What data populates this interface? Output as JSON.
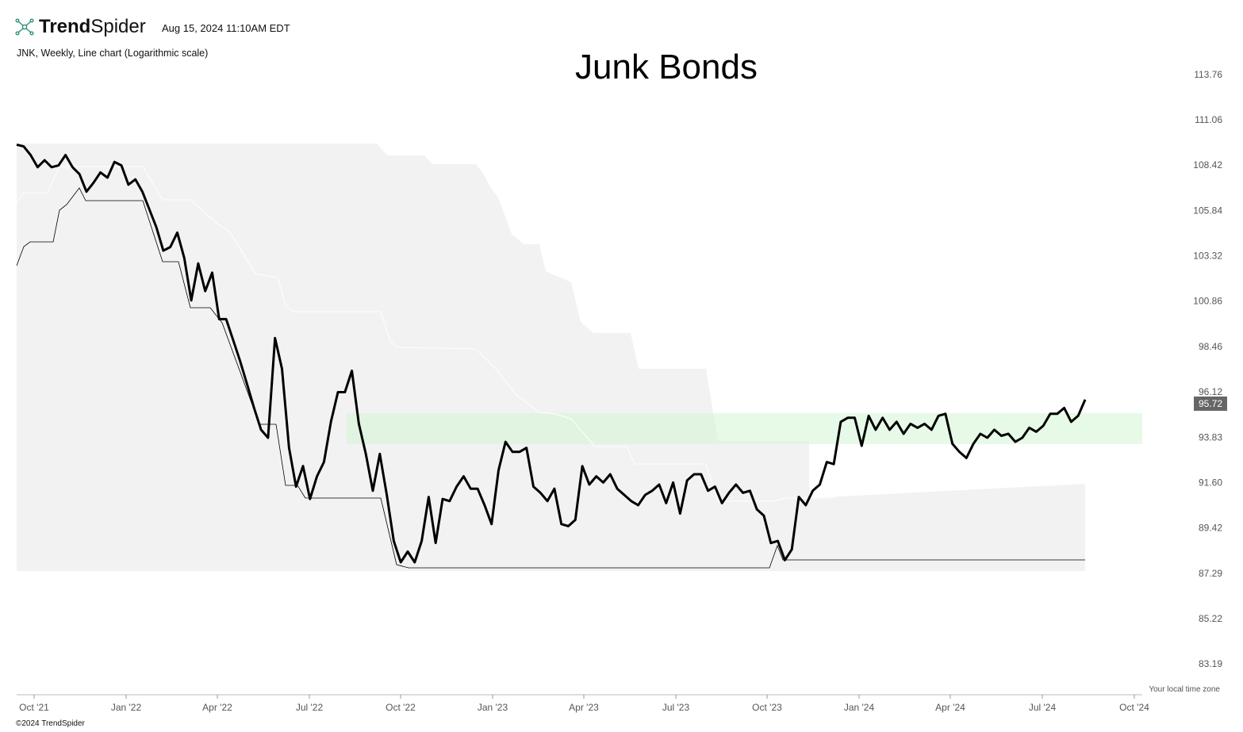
{
  "header": {
    "brand_bold": "Trend",
    "brand_light": "Spider",
    "timestamp": "Aug 15, 2024 11:10AM EDT",
    "subtitle": "JNK, Weekly, Line chart (Logarithmic scale)"
  },
  "footer": {
    "copyright": "©2024 TrendSpider",
    "timezone_note": "Your local time zone"
  },
  "colors": {
    "price_line": "#000000",
    "cloud_fill": "#f2f2f2",
    "zone_fill": "#d4f5d4",
    "last_price_badge": "#666666"
  },
  "chart_data": {
    "type": "line",
    "title": "Junk Bonds",
    "symbol": "JNK",
    "interval": "Weekly",
    "scale": "log",
    "y_ticks": [
      "113.76",
      "111.06",
      "108.42",
      "105.84",
      "103.32",
      "100.86",
      "98.46",
      "96.12",
      "93.83",
      "91.60",
      "89.42",
      "87.29",
      "85.22",
      "83.19"
    ],
    "x_ticks": [
      "Oct '21",
      "Jan '22",
      "Apr '22",
      "Jul '22",
      "Oct '22",
      "Jan '23",
      "Apr '23",
      "Jul '23",
      "Oct '23",
      "Jan '24",
      "Apr '24",
      "Jul '24",
      "Oct '24"
    ],
    "last_price": "95.72",
    "x_start": "2021-09-17",
    "x_step_days": 7,
    "series": [
      {
        "values": [
          109.6,
          109.5,
          109.0,
          108.3,
          108.7,
          108.3,
          108.4,
          109.0,
          108.3,
          107.9,
          106.9,
          107.4,
          108.0,
          107.7,
          108.6,
          108.4,
          107.3,
          107.6,
          106.9,
          105.9,
          104.9,
          103.6,
          103.8,
          104.6,
          103.2,
          100.9,
          102.9,
          101.4,
          102.4,
          99.9,
          99.9,
          98.8,
          97.7,
          96.5,
          95.3,
          94.2,
          93.8,
          98.9,
          97.3,
          93.3,
          91.4,
          92.4,
          90.8,
          91.9,
          92.6,
          94.6,
          96.1,
          96.1,
          97.2,
          94.5,
          93.0,
          91.2,
          93.0,
          91.0,
          88.8,
          87.8,
          88.3,
          87.8,
          88.8,
          90.9,
          88.7,
          90.8,
          90.7,
          91.4,
          91.9,
          91.3,
          91.3,
          90.5,
          89.6,
          92.2,
          93.6,
          93.1,
          93.1,
          93.3,
          91.4,
          91.1,
          90.7,
          91.3,
          89.6,
          89.5,
          89.8,
          92.4,
          91.5,
          91.9,
          91.6,
          92.0,
          91.3,
          91.0,
          90.7,
          90.5,
          91.0,
          91.2,
          91.5,
          90.6,
          91.6,
          90.1,
          91.7,
          92.0,
          92.0,
          91.2,
          91.4,
          90.6,
          91.1,
          91.5,
          91.1,
          91.2,
          90.3,
          90.0,
          88.7,
          88.8,
          87.9,
          88.4,
          90.9,
          90.5,
          91.2,
          91.5,
          92.6,
          92.5,
          94.6,
          94.8,
          94.8,
          93.4,
          94.9,
          94.2,
          94.8,
          94.2,
          94.6,
          94.0,
          94.5,
          94.3,
          94.5,
          94.2,
          94.9,
          95.0,
          93.5,
          93.1,
          92.8,
          93.5,
          94.0,
          93.8,
          94.2,
          93.9,
          94.0,
          93.6,
          93.8,
          94.3,
          94.1,
          94.4,
          95.0,
          95.0,
          95.3,
          94.6,
          94.9,
          95.72
        ]
      }
    ]
  }
}
